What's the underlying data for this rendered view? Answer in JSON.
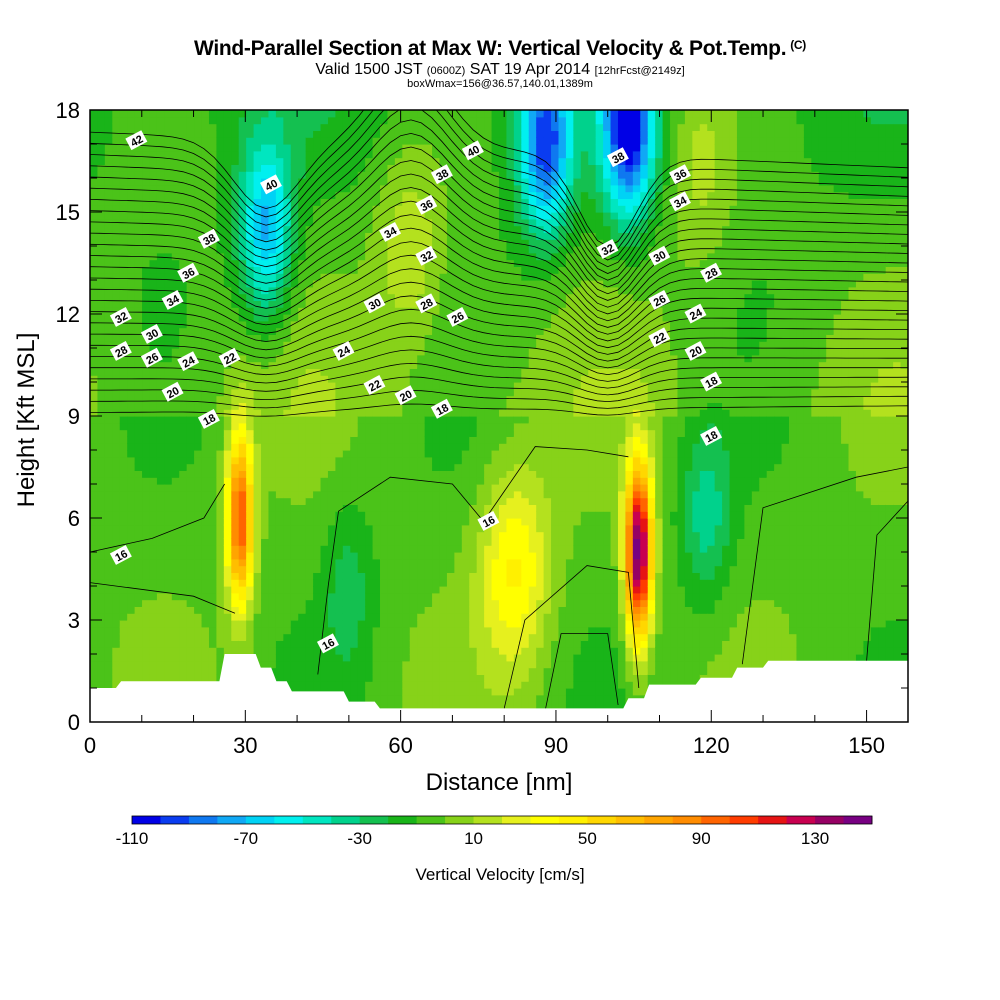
{
  "chart_data": {
    "type": "heatmap",
    "title": "Wind-Parallel Section at Max W: Vertical Velocity & Pot.Temp.",
    "title_mark": "(C)",
    "subtitle_main": "Valid 1500 JST",
    "subtitle_utc": "(0600Z)",
    "subtitle_date": "SAT 19 Apr 2014",
    "subtitle_fcst": "[12hrFcst@2149z]",
    "subtitle2": "boxWmax=156@36.57,140.01,1389m",
    "xlabel": "Distance [nm]",
    "ylabel": "Height [Kft MSL]",
    "xlim": [
      0,
      158
    ],
    "ylim": [
      0,
      18
    ],
    "x_ticks": [
      "0",
      "30",
      "60",
      "90",
      "120",
      "150"
    ],
    "x_tick_values": [
      0,
      30,
      60,
      90,
      120,
      150
    ],
    "y_ticks": [
      "0",
      "3",
      "6",
      "9",
      "12",
      "15",
      "18"
    ],
    "y_tick_values": [
      0,
      3,
      6,
      9,
      12,
      15,
      18
    ],
    "colorbar": {
      "title": "Vertical Velocity [cm/s]",
      "labels": [
        "-110",
        "-70",
        "-30",
        "10",
        "50",
        "90",
        "130"
      ],
      "label_values": [
        -110,
        -70,
        -30,
        10,
        50,
        90,
        130
      ],
      "range": [
        -110,
        150
      ],
      "colors": [
        "#0000e6",
        "#0a3cf0",
        "#0f78f0",
        "#10a8f5",
        "#00d2f5",
        "#00f0ef",
        "#00e6c0",
        "#00d28c",
        "#14c050",
        "#19b419",
        "#4bc319",
        "#87d219",
        "#b4e11e",
        "#e6f01e",
        "#ffff00",
        "#fff000",
        "#ffd700",
        "#ffbe00",
        "#ffa500",
        "#ff8c00",
        "#ff6400",
        "#ff3c00",
        "#e61414",
        "#c80050",
        "#960064",
        "#780082"
      ]
    },
    "terrain": [
      [
        0,
        1.0
      ],
      [
        5,
        1.0
      ],
      [
        6,
        1.2
      ],
      [
        25,
        1.2
      ],
      [
        26,
        2.0
      ],
      [
        32,
        2.0
      ],
      [
        33,
        1.6
      ],
      [
        35,
        1.6
      ],
      [
        36,
        1.2
      ],
      [
        38,
        1.2
      ],
      [
        39,
        0.9
      ],
      [
        49,
        0.9
      ],
      [
        50,
        0.6
      ],
      [
        55,
        0.6
      ],
      [
        56,
        0.4
      ],
      [
        103,
        0.4
      ],
      [
        104,
        0.7
      ],
      [
        107,
        0.7
      ],
      [
        108,
        1.1
      ],
      [
        117,
        1.1
      ],
      [
        118,
        1.3
      ],
      [
        124,
        1.3
      ],
      [
        125,
        1.6
      ],
      [
        130,
        1.6
      ],
      [
        131,
        1.8
      ],
      [
        158,
        1.8
      ]
    ],
    "updrafts": [
      {
        "x": 29,
        "z": 6.0,
        "peak": 105
      },
      {
        "x": 106,
        "z": 5.0,
        "peak": 150
      },
      {
        "x": 82,
        "z": 4.5,
        "peak": 45
      },
      {
        "x": 62,
        "z": 14,
        "peak": 25
      },
      {
        "x": 118,
        "z": 16.5,
        "peak": 22
      }
    ],
    "downdrafts": [
      {
        "x": 34,
        "z": 14.5,
        "peak": -65
      },
      {
        "x": 88,
        "z": 17.0,
        "peak": -85
      },
      {
        "x": 104,
        "z": 17.5,
        "peak": -100
      },
      {
        "x": 50,
        "z": 4.0,
        "peak": -20
      },
      {
        "x": 119,
        "z": 6.0,
        "peak": -30
      }
    ],
    "isentrope_labels": [
      {
        "text": "42",
        "x": 9,
        "z": 17.1
      },
      {
        "text": "40",
        "x": 35,
        "z": 15.8
      },
      {
        "text": "40",
        "x": 74,
        "z": 16.8
      },
      {
        "text": "38",
        "x": 102,
        "z": 16.6
      },
      {
        "text": "38",
        "x": 68,
        "z": 16.1
      },
      {
        "text": "36",
        "x": 114,
        "z": 16.1
      },
      {
        "text": "36",
        "x": 65,
        "z": 15.2
      },
      {
        "text": "34",
        "x": 114,
        "z": 15.3
      },
      {
        "text": "38",
        "x": 23,
        "z": 14.2
      },
      {
        "text": "34",
        "x": 58,
        "z": 14.4
      },
      {
        "text": "32",
        "x": 65,
        "z": 13.7
      },
      {
        "text": "32",
        "x": 100,
        "z": 13.9
      },
      {
        "text": "30",
        "x": 110,
        "z": 13.7
      },
      {
        "text": "36",
        "x": 19,
        "z": 13.2
      },
      {
        "text": "28",
        "x": 120,
        "z": 13.2
      },
      {
        "text": "34",
        "x": 16,
        "z": 12.4
      },
      {
        "text": "30",
        "x": 55,
        "z": 12.3
      },
      {
        "text": "28",
        "x": 65,
        "z": 12.3
      },
      {
        "text": "26",
        "x": 110,
        "z": 12.4
      },
      {
        "text": "32",
        "x": 6,
        "z": 11.9
      },
      {
        "text": "26",
        "x": 71,
        "z": 11.9
      },
      {
        "text": "24",
        "x": 117,
        "z": 12.0
      },
      {
        "text": "30",
        "x": 12,
        "z": 11.4
      },
      {
        "text": "22",
        "x": 110,
        "z": 11.3
      },
      {
        "text": "28",
        "x": 6,
        "z": 10.9
      },
      {
        "text": "26",
        "x": 12,
        "z": 10.7
      },
      {
        "text": "24",
        "x": 19,
        "z": 10.6
      },
      {
        "text": "22",
        "x": 27,
        "z": 10.7
      },
      {
        "text": "24",
        "x": 49,
        "z": 10.9
      },
      {
        "text": "20",
        "x": 117,
        "z": 10.9
      },
      {
        "text": "22",
        "x": 55,
        "z": 9.9
      },
      {
        "text": "18",
        "x": 120,
        "z": 10.0
      },
      {
        "text": "20",
        "x": 16,
        "z": 9.7
      },
      {
        "text": "20",
        "x": 61,
        "z": 9.6
      },
      {
        "text": "18",
        "x": 68,
        "z": 9.2
      },
      {
        "text": "18",
        "x": 23,
        "z": 8.9
      },
      {
        "text": "18",
        "x": 120,
        "z": 8.4
      },
      {
        "text": "16",
        "x": 6,
        "z": 4.9
      },
      {
        "text": "16",
        "x": 77,
        "z": 5.9
      },
      {
        "text": "16",
        "x": 46,
        "z": 2.3
      }
    ]
  }
}
